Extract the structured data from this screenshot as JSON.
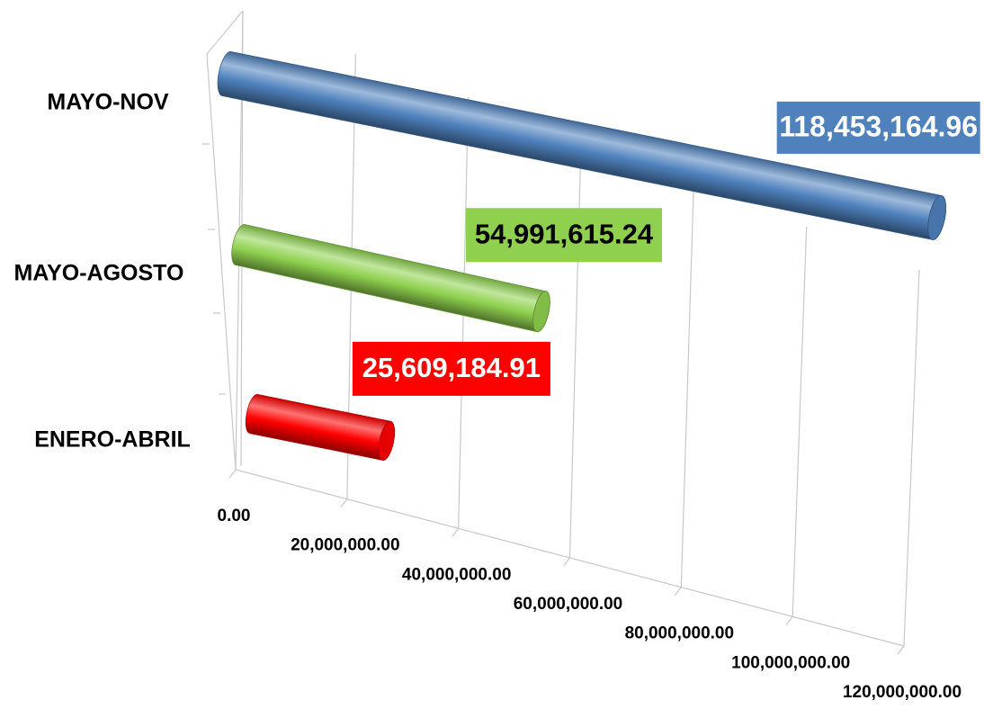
{
  "chart_data": {
    "type": "bar3d",
    "orientation": "horizontal",
    "categories": [
      "ENERO-ABRIL",
      "MAYO-AGOSTO",
      "MAYO-NOV"
    ],
    "values": [
      25609184.91,
      54991615.24,
      118453164.96
    ],
    "value_labels": [
      "25,609,184.91",
      "54,991,615.24",
      "118,453,164.96"
    ],
    "colors": [
      "#ff0000",
      "#8fd14f",
      "#4f81bd"
    ],
    "xlim": [
      0,
      120000000
    ],
    "xticks": [
      {
        "value": 0,
        "label": "0.00"
      },
      {
        "value": 20000000,
        "label": "20,000,000.00"
      },
      {
        "value": 40000000,
        "label": "40,000,000.00"
      },
      {
        "value": 60000000,
        "label": "60,000,000.00"
      },
      {
        "value": 80000000,
        "label": "80,000,000.00"
      },
      {
        "value": 100000000,
        "label": "100,000,000.00"
      },
      {
        "value": 120000000,
        "label": "120,000,000.00"
      }
    ],
    "grid": true
  }
}
